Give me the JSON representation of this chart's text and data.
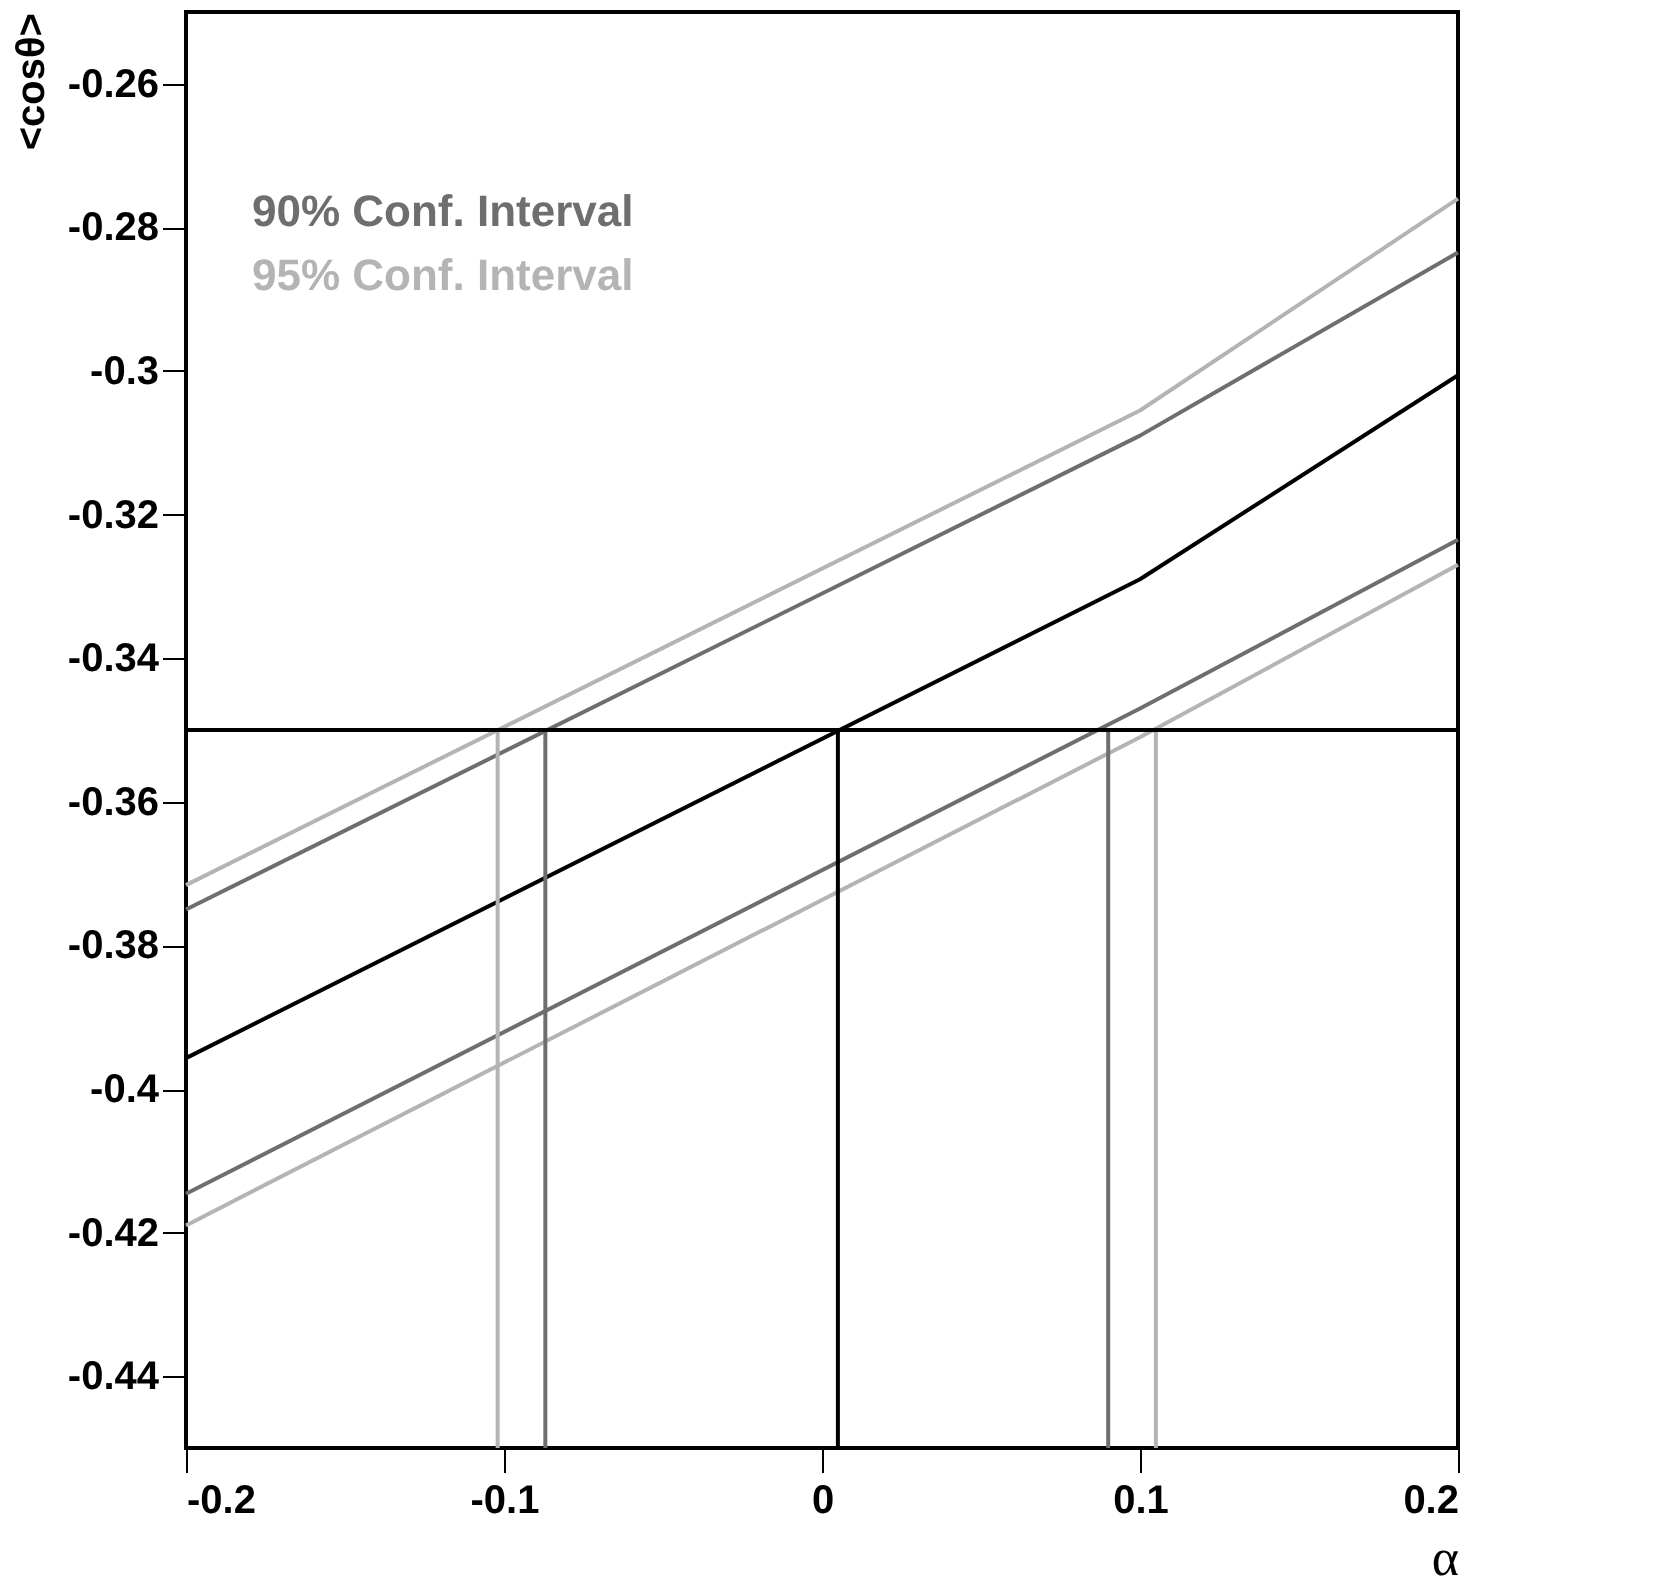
{
  "chart_data": {
    "type": "line",
    "xlabel": "α",
    "ylabel": "<cosθ>",
    "xlim": [
      -0.2,
      0.2
    ],
    "ylim": [
      -0.45,
      -0.25
    ],
    "xticks": [
      -0.2,
      -0.1,
      0,
      0.1,
      0.2
    ],
    "yticks": [
      -0.26,
      -0.28,
      -0.3,
      -0.32,
      -0.34,
      -0.36,
      -0.38,
      -0.4,
      -0.42,
      -0.44
    ],
    "legend": "top left",
    "grid": false,
    "ref_lines": [
      {
        "axis": "y",
        "value": -0.35,
        "color": "#000000"
      }
    ],
    "series": [
      {
        "name": "90% Conf. Interval",
        "color": "#6e6e6e",
        "x": [
          -0.2,
          0.1,
          0.2
        ],
        "values": [
          -0.375,
          -0.309,
          -0.2835
        ]
      },
      {
        "name": "95% Conf. Interval",
        "color": "#b4b4b4",
        "x": [
          -0.2,
          0.1,
          0.2
        ],
        "values": [
          -0.3716,
          -0.3055,
          -0.276
        ]
      },
      {
        "color": "#000000",
        "x": [
          -0.2,
          0.1,
          0.2
        ],
        "values": [
          -0.3957,
          -0.329,
          -0.3006
        ]
      },
      {
        "color": "#6e6e6e",
        "x": [
          -0.2,
          0.1,
          0.2
        ],
        "values": [
          -0.4146,
          -0.347,
          -0.3235
        ]
      },
      {
        "color": "#b4b4b4",
        "x": [
          -0.2,
          0.1,
          0.2
        ],
        "values": [
          -0.419,
          -0.351,
          -0.327
        ]
      },
      {
        "color": "#000000",
        "x": [
          0.005,
          0.005
        ],
        "values": [
          -0.45,
          -0.35
        ]
      },
      {
        "color": "#6e6e6e",
        "x": [
          -0.087,
          -0.087
        ],
        "values": [
          -0.45,
          -0.35
        ]
      },
      {
        "color": "#6e6e6e",
        "x": [
          0.09,
          0.09
        ],
        "values": [
          -0.45,
          -0.35
        ]
      },
      {
        "color": "#b4b4b4",
        "x": [
          -0.102,
          -0.102
        ],
        "values": [
          -0.45,
          -0.35
        ]
      },
      {
        "color": "#b4b4b4",
        "x": [
          0.105,
          0.105
        ],
        "values": [
          -0.45,
          -0.35
        ]
      }
    ]
  }
}
